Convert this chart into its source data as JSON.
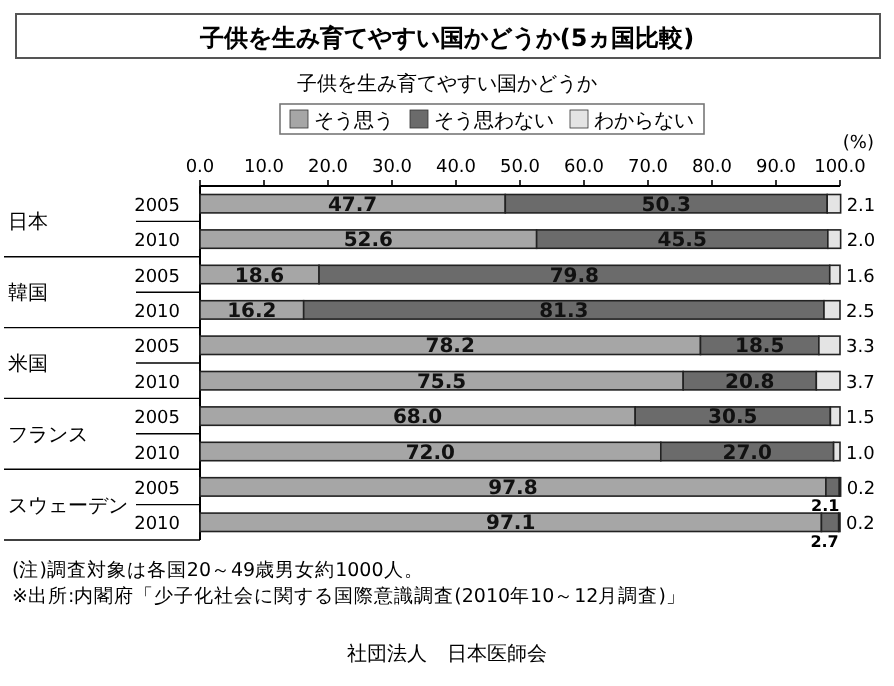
{
  "chart_data": {
    "type": "bar",
    "orientation": "horizontal",
    "stacked": true,
    "title": "子供を生み育てやすい国かどうか(5ヵ国比較)",
    "subtitle": "子供を生み育てやすい国かどうか",
    "xlabel": "(%)",
    "categories": [
      "2005",
      "2010",
      "2005",
      "2010",
      "2005",
      "2010",
      "2005",
      "2010",
      "2005",
      "2010"
    ],
    "series": [
      {
        "name": "そう思う",
        "color": "#a6a6a6",
        "values": [
          47.7,
          52.6,
          18.6,
          16.2,
          78.2,
          75.5,
          68.0,
          72.0,
          97.8,
          97.1
        ],
        "value_labels": [
          "47.7",
          "52.6",
          "18.6",
          "16.2",
          "78.2",
          "75.5",
          "68.0",
          "72.0",
          "97.8",
          "97.1"
        ]
      },
      {
        "name": "そう思わない",
        "color": "#6b6b6b",
        "values": [
          50.3,
          45.5,
          79.8,
          81.3,
          18.5,
          20.8,
          30.5,
          27.0,
          2.1,
          2.7
        ],
        "value_labels": [
          "50.3",
          "45.5",
          "79.8",
          "81.3",
          "18.5",
          "20.8",
          "30.5",
          "27.0",
          "2.1",
          "2.7"
        ]
      },
      {
        "name": "わからない",
        "color": "#e4e4e4",
        "values": [
          2.1,
          2.0,
          1.6,
          2.5,
          3.3,
          3.7,
          1.5,
          1.0,
          0.2,
          0.2
        ],
        "value_labels": [
          "2.1",
          "2.0",
          "1.6",
          "2.5",
          "3.3",
          "3.7",
          "1.5",
          "1.0",
          "0.2",
          "0.2"
        ]
      }
    ],
    "xlim": [
      0,
      100
    ],
    "xticks": [
      {
        "value": 0,
        "label": "0.0"
      },
      {
        "value": 10,
        "label": "10.0"
      },
      {
        "value": 20,
        "label": "20.0"
      },
      {
        "value": 30,
        "label": "30.0"
      },
      {
        "value": 40,
        "label": "40.0"
      },
      {
        "value": 50,
        "label": "50.0"
      },
      {
        "value": 60,
        "label": "60.0"
      },
      {
        "value": 70,
        "label": "70.0"
      },
      {
        "value": 80,
        "label": "80.0"
      },
      {
        "value": 90,
        "label": "90.0"
      },
      {
        "value": 100,
        "label": "100.0"
      }
    ],
    "legend": "top",
    "annotations": [
      "日本",
      "韓国",
      "米国",
      "フランス",
      "スウェーデン",
      "(注)調査対象は各国20～49歳男女約1000人。",
      "※出所:内閣府「少子化社会に関する国際意識調査(2010年10～12月調査)」",
      "社団法人　日本医師会"
    ]
  }
}
